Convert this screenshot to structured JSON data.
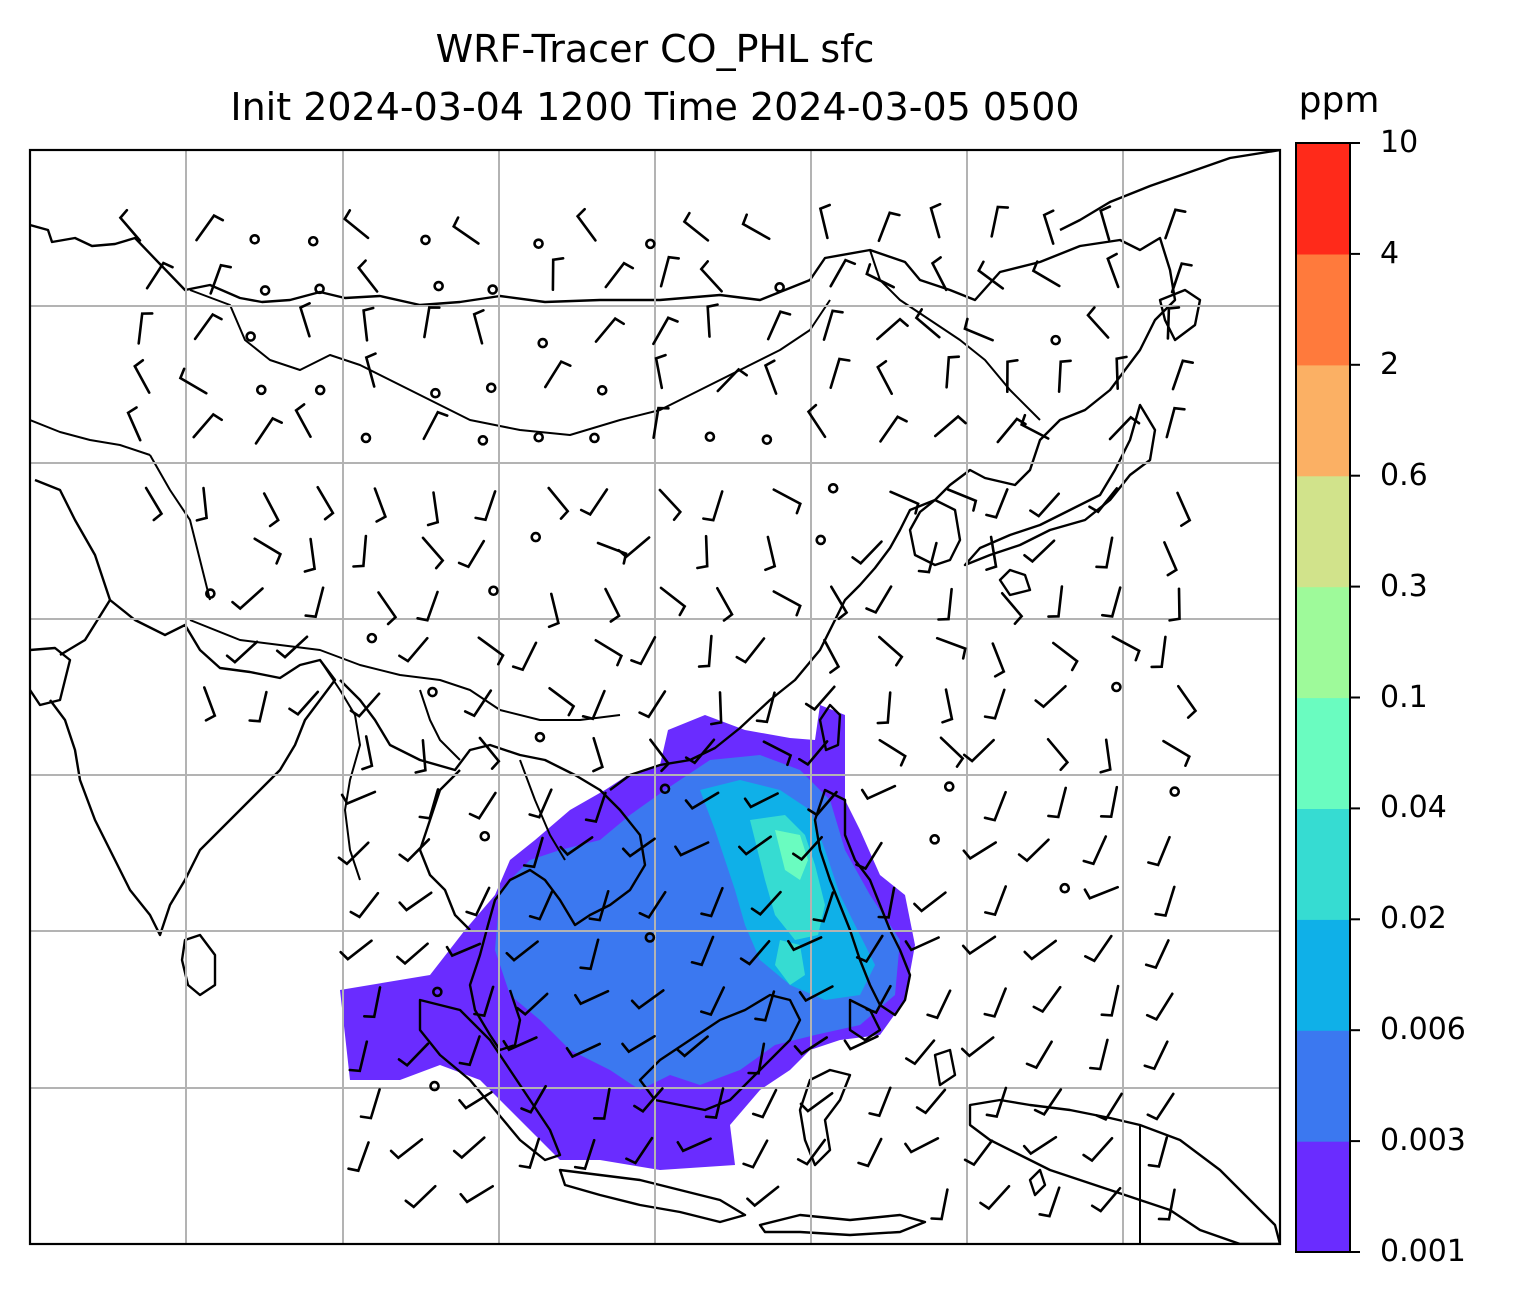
{
  "title_line1": "WRF-Tracer CO_PHL sfc",
  "title_line2": "Init 2024-03-04 1200 Time 2024-03-05 0500",
  "colorbar": {
    "unit": "ppm",
    "levels": [
      "0.001",
      "0.003",
      "0.006",
      "0.02",
      "0.04",
      "0.1",
      "0.3",
      "0.6",
      "2",
      "4",
      "10"
    ],
    "colors": [
      "#6a2cff",
      "#3b78f0",
      "#0fb0e8",
      "#36dcd2",
      "#6afcc0",
      "#9efa9a",
      "#d1e38b",
      "#fbb064",
      "#ff7a3c",
      "#ff2a1a"
    ]
  },
  "map": {
    "gridlines": true,
    "features": [
      "coastlines",
      "country-borders",
      "wind-barbs",
      "calm-circles",
      "tracer-shading"
    ]
  }
}
